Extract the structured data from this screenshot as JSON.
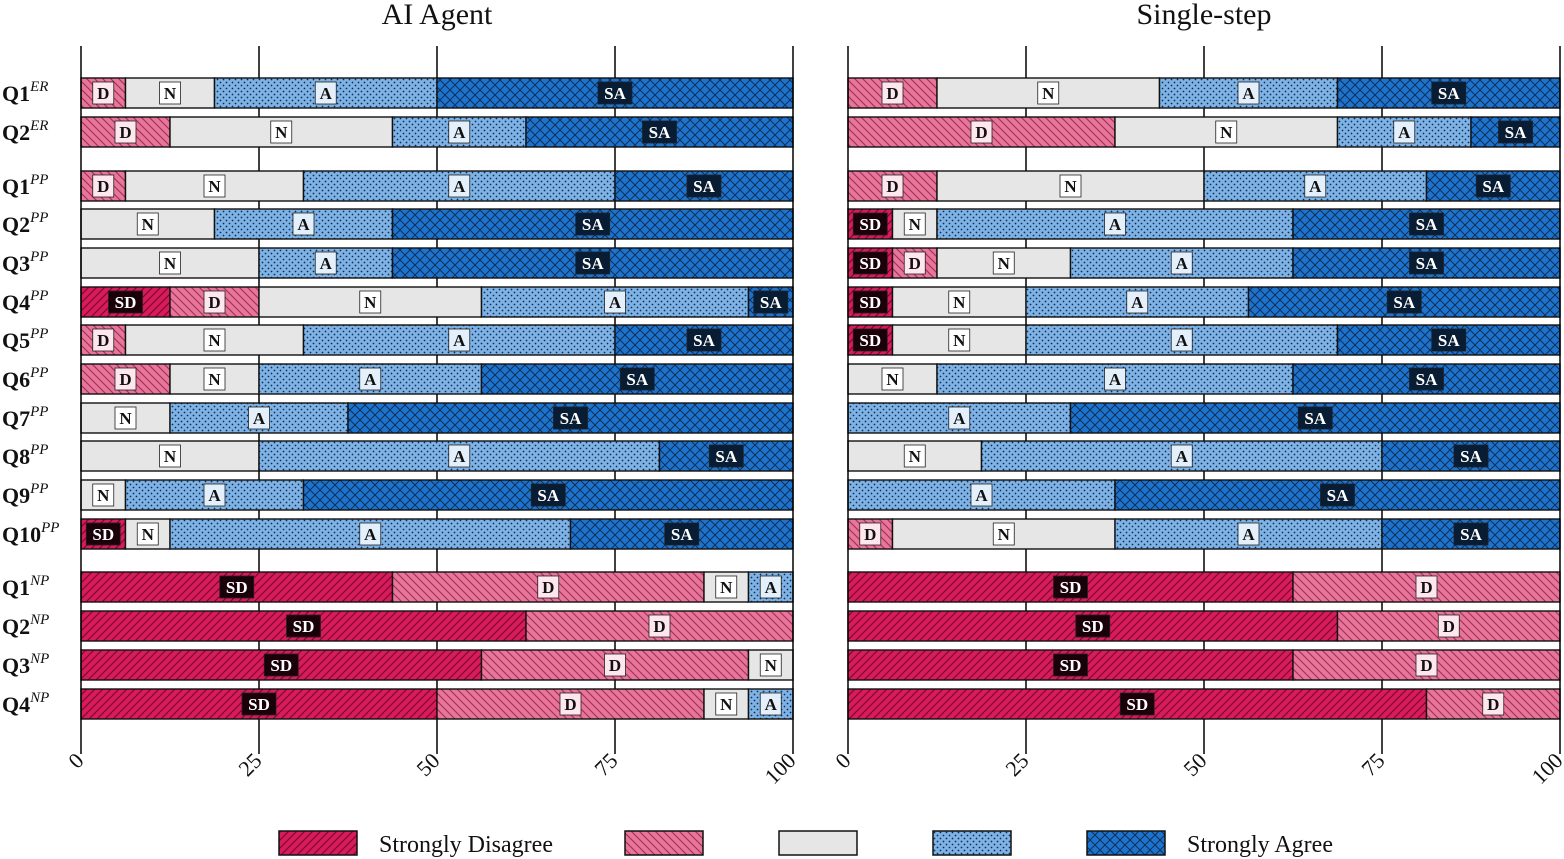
{
  "chart_data": {
    "type": "stacked-horizontal-bar",
    "categories": [
      "Strongly Disagree",
      "Disagree",
      "Neutral",
      "Agree",
      "Strongly Agree"
    ],
    "category_abbrev": [
      "SD",
      "D",
      "N",
      "A",
      "SA"
    ],
    "category_colors": [
      "#d81b5a",
      "#e8769a",
      "#e6e6e6",
      "#7fb2e5",
      "#1e74cd"
    ],
    "legend": [
      "Strongly Disagree",
      "",
      "",
      "",
      "Strongly Agree"
    ],
    "xlim": [
      0,
      100
    ],
    "xticks": [
      "0",
      "25",
      "50",
      "75",
      "100"
    ],
    "rows": [
      {
        "label": "Q1",
        "sup": "ER"
      },
      {
        "label": "Q2",
        "sup": "ER"
      },
      {
        "label": "Q1",
        "sup": "PP"
      },
      {
        "label": "Q2",
        "sup": "PP"
      },
      {
        "label": "Q3",
        "sup": "PP"
      },
      {
        "label": "Q4",
        "sup": "PP"
      },
      {
        "label": "Q5",
        "sup": "PP"
      },
      {
        "label": "Q6",
        "sup": "PP"
      },
      {
        "label": "Q7",
        "sup": "PP"
      },
      {
        "label": "Q8",
        "sup": "PP"
      },
      {
        "label": "Q9",
        "sup": "PP"
      },
      {
        "label": "Q10",
        "sup": "PP"
      },
      {
        "label": "Q1",
        "sup": "NP"
      },
      {
        "label": "Q2",
        "sup": "NP"
      },
      {
        "label": "Q3",
        "sup": "NP"
      },
      {
        "label": "Q4",
        "sup": "NP"
      }
    ],
    "panels": [
      {
        "title": "AI Agent",
        "values": [
          [
            0,
            6.25,
            12.5,
            31.25,
            50
          ],
          [
            0,
            12.5,
            31.25,
            18.75,
            37.5
          ],
          [
            0,
            6.25,
            25,
            43.75,
            25
          ],
          [
            0,
            0,
            18.75,
            25,
            56.25
          ],
          [
            0,
            0,
            25,
            18.75,
            56.25
          ],
          [
            12.5,
            12.5,
            31.25,
            37.5,
            6.25
          ],
          [
            0,
            6.25,
            25,
            43.75,
            25
          ],
          [
            0,
            12.5,
            12.5,
            31.25,
            43.75
          ],
          [
            0,
            0,
            12.5,
            25,
            62.5
          ],
          [
            0,
            0,
            25,
            56.25,
            18.75
          ],
          [
            0,
            0,
            6.25,
            25,
            68.75
          ],
          [
            6.25,
            0,
            6.25,
            56.25,
            31.25
          ],
          [
            43.75,
            43.75,
            6.25,
            6.25,
            0
          ],
          [
            62.5,
            37.5,
            0,
            0,
            0
          ],
          [
            56.25,
            37.5,
            6.25,
            0,
            0
          ],
          [
            50,
            37.5,
            6.25,
            6.25,
            0
          ]
        ]
      },
      {
        "title": "Single-step",
        "values": [
          [
            0,
            12.5,
            31.25,
            25,
            31.25
          ],
          [
            0,
            37.5,
            31.25,
            18.75,
            12.5
          ],
          [
            0,
            12.5,
            37.5,
            31.25,
            18.75
          ],
          [
            6.25,
            0,
            6.25,
            50,
            37.5
          ],
          [
            6.25,
            6.25,
            18.75,
            31.25,
            37.5
          ],
          [
            6.25,
            0,
            18.75,
            31.25,
            43.75
          ],
          [
            6.25,
            0,
            18.75,
            43.75,
            31.25
          ],
          [
            0,
            0,
            12.5,
            50,
            37.5
          ],
          [
            0,
            0,
            0,
            31.25,
            68.75
          ],
          [
            0,
            0,
            18.75,
            56.25,
            25
          ],
          [
            0,
            0,
            0,
            37.5,
            62.5
          ],
          [
            0,
            6.25,
            31.25,
            37.5,
            25
          ],
          [
            62.5,
            37.5,
            0,
            0,
            0
          ],
          [
            68.75,
            31.25,
            0,
            0,
            0
          ],
          [
            62.5,
            37.5,
            0,
            0,
            0
          ],
          [
            81.25,
            18.75,
            0,
            0,
            0
          ]
        ]
      }
    ]
  }
}
